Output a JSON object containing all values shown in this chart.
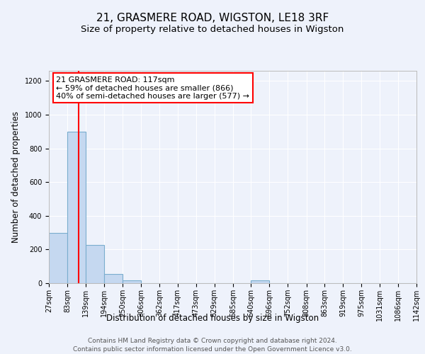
{
  "title": "21, GRASMERE ROAD, WIGSTON, LE18 3RF",
  "subtitle": "Size of property relative to detached houses in Wigston",
  "xlabel": "Distribution of detached houses by size in Wigston",
  "ylabel": "Number of detached properties",
  "bin_edges": [
    27,
    83,
    139,
    194,
    250,
    306,
    362,
    417,
    473,
    529,
    585,
    640,
    696,
    752,
    808,
    863,
    919,
    975,
    1031,
    1086,
    1142
  ],
  "bar_heights": [
    300,
    900,
    225,
    55,
    15,
    0,
    0,
    0,
    0,
    0,
    0,
    15,
    0,
    0,
    0,
    0,
    0,
    0,
    0,
    0
  ],
  "bar_color": "#c5d8f0",
  "bar_edge_color": "#7aadce",
  "bar_linewidth": 0.8,
  "vline_x": 117,
  "vline_color": "red",
  "vline_linewidth": 1.5,
  "annotation_text": "21 GRASMERE ROAD: 117sqm\n← 59% of detached houses are smaller (866)\n40% of semi-detached houses are larger (577) →",
  "ylim": [
    0,
    1260
  ],
  "yticks": [
    0,
    200,
    400,
    600,
    800,
    1000,
    1200
  ],
  "background_color": "#eef2fb",
  "axes_bg_color": "#eef2fb",
  "grid_color": "white",
  "footer_text": "Contains HM Land Registry data © Crown copyright and database right 2024.\nContains public sector information licensed under the Open Government Licence v3.0.",
  "title_fontsize": 11,
  "subtitle_fontsize": 9.5,
  "xlabel_fontsize": 8.5,
  "ylabel_fontsize": 8.5,
  "annotation_fontsize": 8,
  "footer_fontsize": 6.5,
  "tick_fontsize": 7
}
